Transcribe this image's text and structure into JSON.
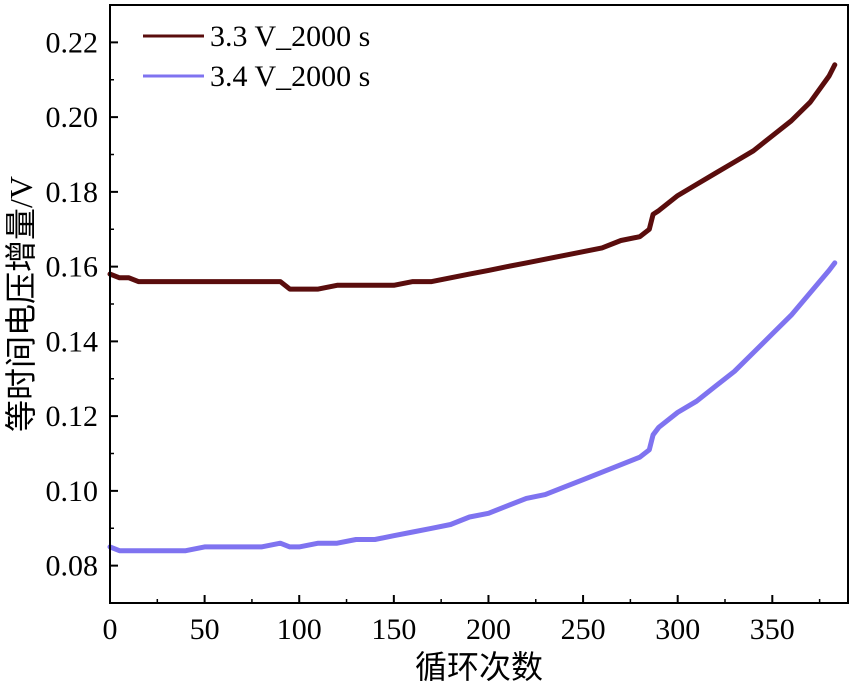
{
  "chart_data": {
    "type": "line",
    "xlabel": "循环次数",
    "ylabel": "等时间电压增量/V",
    "xlim": [
      0,
      390
    ],
    "ylim": [
      0.07,
      0.23
    ],
    "xticks": [
      "0",
      "50",
      "100",
      "150",
      "200",
      "250",
      "300",
      "350"
    ],
    "yticks": [
      "0.08",
      "0.10",
      "0.12",
      "0.14",
      "0.16",
      "0.18",
      "0.20",
      "0.22"
    ],
    "legend_position": "top-left",
    "series": [
      {
        "name": "3.3 V_2000 s",
        "color": "#5a0d0d",
        "x": [
          0,
          5,
          10,
          15,
          20,
          30,
          40,
          50,
          60,
          70,
          80,
          90,
          95,
          100,
          110,
          120,
          130,
          140,
          150,
          160,
          170,
          180,
          190,
          200,
          210,
          220,
          230,
          240,
          250,
          260,
          270,
          280,
          285,
          287,
          290,
          300,
          310,
          320,
          330,
          340,
          350,
          360,
          370,
          380,
          383
        ],
        "values": [
          0.158,
          0.157,
          0.157,
          0.156,
          0.156,
          0.156,
          0.156,
          0.156,
          0.156,
          0.156,
          0.156,
          0.156,
          0.154,
          0.154,
          0.154,
          0.155,
          0.155,
          0.155,
          0.155,
          0.156,
          0.156,
          0.157,
          0.158,
          0.159,
          0.16,
          0.161,
          0.162,
          0.163,
          0.164,
          0.165,
          0.167,
          0.168,
          0.17,
          0.174,
          0.175,
          0.179,
          0.182,
          0.185,
          0.188,
          0.191,
          0.195,
          0.199,
          0.204,
          0.211,
          0.214
        ]
      },
      {
        "name": "3.4 V_2000 s",
        "color": "#7f73f0",
        "x": [
          0,
          5,
          10,
          20,
          30,
          40,
          50,
          60,
          70,
          80,
          90,
          95,
          100,
          110,
          120,
          130,
          140,
          150,
          160,
          170,
          180,
          190,
          200,
          210,
          220,
          230,
          240,
          250,
          260,
          270,
          280,
          285,
          287,
          290,
          300,
          310,
          320,
          330,
          340,
          350,
          360,
          370,
          380,
          383
        ],
        "values": [
          0.085,
          0.084,
          0.084,
          0.084,
          0.084,
          0.084,
          0.085,
          0.085,
          0.085,
          0.085,
          0.086,
          0.085,
          0.085,
          0.086,
          0.086,
          0.087,
          0.087,
          0.088,
          0.089,
          0.09,
          0.091,
          0.093,
          0.094,
          0.096,
          0.098,
          0.099,
          0.101,
          0.103,
          0.105,
          0.107,
          0.109,
          0.111,
          0.115,
          0.117,
          0.121,
          0.124,
          0.128,
          0.132,
          0.137,
          0.142,
          0.147,
          0.153,
          0.159,
          0.161
        ]
      }
    ]
  }
}
